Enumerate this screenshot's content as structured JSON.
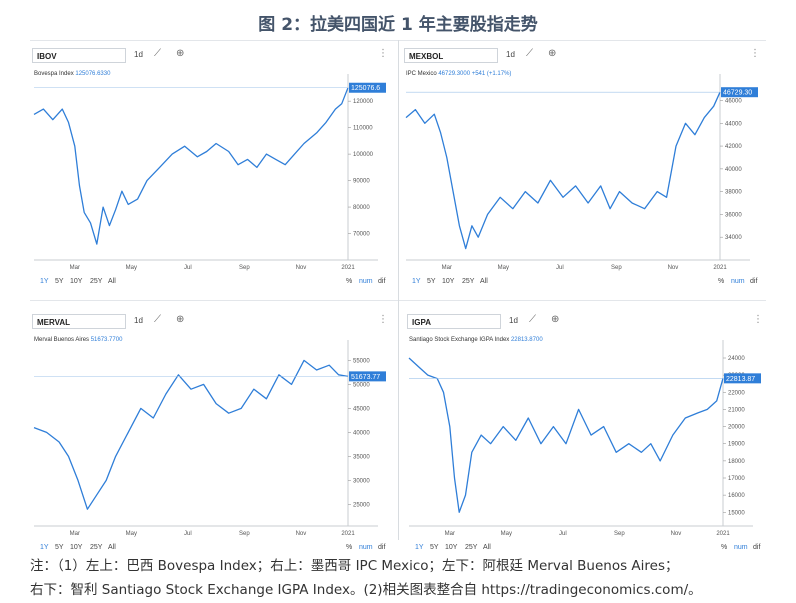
{
  "figure_title": "图 2：拉美四国近 1 年主要股指走势",
  "toolbar": {
    "interval": "1d",
    "line_icon": "line-chart-icon",
    "add_icon": "plus-circle-icon",
    "more_icon": "kebab-icon"
  },
  "range_buttons": [
    "1Y",
    "5Y",
    "10Y",
    "25Y",
    "All"
  ],
  "right_buttons": {
    "percent": "%",
    "num": "num",
    "dif": "dif"
  },
  "x_ticks": [
    "Mar",
    "May",
    "Jul",
    "Sep",
    "Nov",
    "2021"
  ],
  "colors": {
    "line": "#2f7ed8",
    "accent": "#2f7ed8"
  },
  "panels": [
    {
      "id": "ibov",
      "symbol": "IBOV",
      "legend_name": "Bovespa Index",
      "legend_value": "125076.6330",
      "last_label": "125076.6",
      "y_ticks": [
        70000,
        80000,
        90000,
        100000,
        110000,
        120000
      ],
      "ylim": [
        60000,
        128000
      ]
    },
    {
      "id": "mexbol",
      "symbol": "MEXBOL",
      "legend_name": "IPC Mexico",
      "legend_value": "46729.3000",
      "legend_change": "+541 (+1.17%)",
      "last_label": "46729.30",
      "y_ticks": [
        34000,
        36000,
        38000,
        40000,
        42000,
        44000,
        46000
      ],
      "ylim": [
        32000,
        47800
      ]
    },
    {
      "id": "merval",
      "symbol": "MERVAL",
      "legend_name": "Merval Buenos Aires",
      "legend_value": "51673.7700",
      "last_label": "51673.77",
      "y_ticks": [
        25000,
        30000,
        35000,
        40000,
        45000,
        50000,
        55000
      ],
      "ylim": [
        20500,
        58000
      ]
    },
    {
      "id": "igpa",
      "symbol": "IGPA",
      "legend_name": "Santiago Stock Exchange IGPA Index",
      "legend_value": "22813.8700",
      "last_label": "22813.87",
      "y_ticks": [
        15000,
        16000,
        17000,
        18000,
        19000,
        20000,
        21000,
        22000,
        23000,
        24000
      ],
      "ylim": [
        14200,
        24700
      ]
    }
  ],
  "chart_data": [
    {
      "type": "line",
      "title": "IBOV",
      "series": [
        {
          "name": "Bovespa Index",
          "x": [
            0,
            0.03,
            0.06,
            0.09,
            0.11,
            0.13,
            0.145,
            0.16,
            0.18,
            0.2,
            0.22,
            0.24,
            0.26,
            0.28,
            0.3,
            0.33,
            0.36,
            0.4,
            0.44,
            0.48,
            0.52,
            0.55,
            0.58,
            0.62,
            0.65,
            0.68,
            0.71,
            0.74,
            0.77,
            0.8,
            0.83,
            0.86,
            0.9,
            0.93,
            0.96,
            0.98,
            1.0
          ],
          "values": [
            115000,
            117000,
            113000,
            117000,
            112000,
            103000,
            88000,
            78000,
            74000,
            66000,
            80000,
            73000,
            79000,
            86000,
            81000,
            83000,
            90000,
            95000,
            100000,
            103000,
            99000,
            101000,
            104000,
            101000,
            96000,
            98000,
            95000,
            100000,
            98000,
            96000,
            100000,
            104000,
            108000,
            112000,
            117000,
            119000,
            125076
          ]
        }
      ],
      "xlim": [
        "2020-01",
        "2021-01"
      ],
      "ylim": [
        60000,
        128000
      ]
    },
    {
      "type": "line",
      "title": "MEXBOL",
      "series": [
        {
          "name": "IPC Mexico",
          "x": [
            0,
            0.03,
            0.06,
            0.09,
            0.11,
            0.13,
            0.15,
            0.17,
            0.19,
            0.21,
            0.23,
            0.26,
            0.3,
            0.34,
            0.38,
            0.42,
            0.46,
            0.5,
            0.54,
            0.58,
            0.62,
            0.65,
            0.68,
            0.72,
            0.76,
            0.8,
            0.83,
            0.86,
            0.89,
            0.92,
            0.95,
            0.98,
            1.0
          ],
          "values": [
            44500,
            45200,
            44000,
            44800,
            43200,
            41000,
            38000,
            35000,
            33000,
            35000,
            34000,
            36000,
            37500,
            36500,
            38000,
            37000,
            39000,
            37500,
            38500,
            37000,
            38500,
            36500,
            38000,
            37000,
            36500,
            38000,
            37500,
            42000,
            44000,
            43000,
            44500,
            45500,
            46729
          ]
        }
      ],
      "xlim": [
        "2020-01",
        "2021-01"
      ],
      "ylim": [
        32000,
        47800
      ]
    },
    {
      "type": "line",
      "title": "MERVAL",
      "series": [
        {
          "name": "Merval Buenos Aires",
          "x": [
            0,
            0.04,
            0.08,
            0.11,
            0.14,
            0.17,
            0.2,
            0.23,
            0.26,
            0.3,
            0.34,
            0.38,
            0.42,
            0.46,
            0.5,
            0.54,
            0.58,
            0.62,
            0.66,
            0.7,
            0.74,
            0.78,
            0.82,
            0.86,
            0.9,
            0.94,
            0.97,
            1.0
          ],
          "values": [
            41000,
            40000,
            38000,
            35000,
            30000,
            24000,
            27000,
            30000,
            35000,
            40000,
            45000,
            43000,
            48000,
            52000,
            49000,
            50000,
            46000,
            44000,
            45000,
            49000,
            47000,
            52000,
            50000,
            55000,
            53000,
            54000,
            52000,
            51673
          ]
        }
      ],
      "xlim": [
        "2020-01",
        "2021-01"
      ],
      "ylim": [
        20500,
        58000
      ]
    },
    {
      "type": "line",
      "title": "IGPA",
      "series": [
        {
          "name": "Santiago Stock Exchange IGPA Index",
          "x": [
            0,
            0.03,
            0.06,
            0.09,
            0.11,
            0.13,
            0.145,
            0.16,
            0.18,
            0.2,
            0.23,
            0.26,
            0.3,
            0.34,
            0.38,
            0.42,
            0.46,
            0.5,
            0.54,
            0.58,
            0.62,
            0.66,
            0.7,
            0.74,
            0.77,
            0.8,
            0.84,
            0.88,
            0.92,
            0.95,
            0.98,
            1.0
          ],
          "values": [
            24000,
            23500,
            23000,
            22800,
            22000,
            20000,
            17000,
            15000,
            16000,
            18500,
            19500,
            19000,
            20000,
            19200,
            20500,
            19000,
            20000,
            19000,
            21000,
            19500,
            20000,
            18500,
            19000,
            18500,
            19000,
            18000,
            19500,
            20500,
            20800,
            21000,
            21500,
            22813
          ]
        }
      ],
      "xlim": [
        "2020-01",
        "2021-01"
      ],
      "ylim": [
        14200,
        24700
      ]
    }
  ],
  "notes": {
    "line1": "注：（1）左上：巴西 Bovespa Index；右上：墨西哥 IPC Mexico；左下：阿根廷 Merval Buenos Aires；",
    "line2": "右下：智利 Santiago Stock Exchange IGPA Index。(2)相关图表整合自 https://tradingeconomics.com/。"
  }
}
